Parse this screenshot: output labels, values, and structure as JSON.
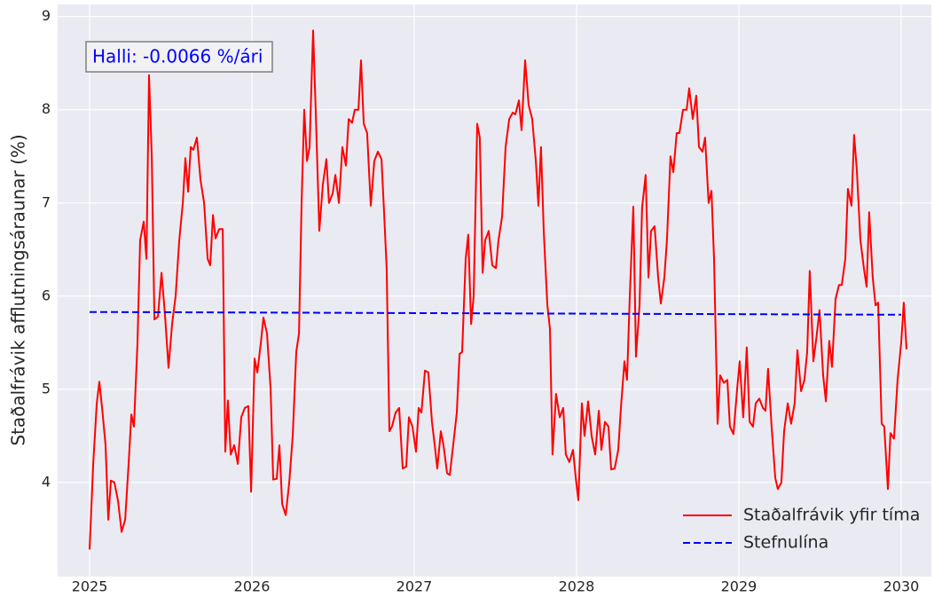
{
  "chart_data": {
    "type": "line",
    "ylabel": "Staðalfrávik afflutningsáraunar (%)",
    "annotation": "Halli: -0.0066 %/ári",
    "xlim": [
      2024.803,
      2030.186
    ],
    "xticks": [
      2025,
      2026,
      2027,
      2028,
      2029,
      2030
    ],
    "ylim": [
      2.99,
      9.13
    ],
    "yticks": [
      4,
      5,
      6,
      7,
      8,
      9
    ],
    "grid": true,
    "legend": "lower right",
    "series": [
      {
        "name": "Staðalfrávik yfir tíma",
        "color": "#ff0000",
        "linestyle": "solid",
        "x": [
          2025,
          2025.022,
          2025.044,
          2025.06,
          2025.077,
          2025.098,
          2025.115,
          2025.131,
          2025.153,
          2025.175,
          2025.197,
          2025.219,
          2025.24,
          2025.257,
          2025.273,
          2025.295,
          2025.311,
          2025.333,
          2025.35,
          2025.366,
          2025.383,
          2025.399,
          2025.421,
          2025.443,
          2025.464,
          2025.486,
          2025.508,
          2025.53,
          2025.552,
          2025.574,
          2025.59,
          2025.607,
          2025.623,
          2025.639,
          2025.661,
          2025.683,
          2025.705,
          2025.727,
          2025.743,
          2025.76,
          2025.776,
          2025.798,
          2025.82,
          2025.836,
          2025.852,
          2025.869,
          2025.891,
          2025.913,
          2025.934,
          2025.956,
          2025.978,
          2025.995,
          2026.016,
          2026.033,
          2026.055,
          2026.071,
          2026.093,
          2026.115,
          2026.131,
          2026.153,
          2026.169,
          2026.186,
          2026.208,
          2026.23,
          2026.251,
          2026.273,
          2026.29,
          2026.306,
          2026.322,
          2026.339,
          2026.355,
          2026.377,
          2026.393,
          2026.415,
          2026.437,
          2026.459,
          2026.475,
          2026.497,
          2026.514,
          2026.536,
          2026.557,
          2026.579,
          2026.596,
          2026.617,
          2026.634,
          2026.656,
          2026.672,
          2026.689,
          2026.71,
          2026.732,
          2026.754,
          2026.776,
          2026.798,
          2026.814,
          2026.83,
          2026.847,
          2026.863,
          2026.885,
          2026.907,
          2026.929,
          2026.951,
          2026.967,
          2026.989,
          2027.011,
          2027.027,
          2027.044,
          2027.066,
          2027.087,
          2027.109,
          2027.126,
          2027.142,
          2027.164,
          2027.18,
          2027.202,
          2027.219,
          2027.24,
          2027.262,
          2027.279,
          2027.295,
          2027.317,
          2027.333,
          2027.35,
          2027.366,
          2027.388,
          2027.404,
          2027.421,
          2027.437,
          2027.459,
          2027.481,
          2027.503,
          2027.519,
          2027.541,
          2027.563,
          2027.585,
          2027.607,
          2027.623,
          2027.645,
          2027.661,
          2027.683,
          2027.705,
          2027.727,
          2027.749,
          2027.765,
          2027.781,
          2027.798,
          2027.82,
          2027.836,
          2027.852,
          2027.874,
          2027.896,
          2027.918,
          2027.934,
          2027.956,
          2027.978,
          2027.995,
          2028.011,
          2028.033,
          2028.049,
          2028.071,
          2028.093,
          2028.115,
          2028.137,
          2028.153,
          2028.175,
          2028.197,
          2028.213,
          2028.235,
          2028.257,
          2028.273,
          2028.295,
          2028.311,
          2028.328,
          2028.35,
          2028.366,
          2028.388,
          2028.404,
          2028.426,
          2028.443,
          2028.459,
          2028.481,
          2028.503,
          2028.519,
          2028.541,
          2028.557,
          2028.579,
          2028.596,
          2028.617,
          2028.634,
          2028.656,
          2028.678,
          2028.694,
          2028.716,
          2028.738,
          2028.754,
          2028.776,
          2028.792,
          2028.814,
          2028.831,
          2028.847,
          2028.869,
          2028.885,
          2028.907,
          2028.929,
          2028.945,
          2028.967,
          2028.989,
          2029.005,
          2029.027,
          2029.049,
          2029.066,
          2029.087,
          2029.104,
          2029.126,
          2029.148,
          2029.164,
          2029.18,
          2029.202,
          2029.224,
          2029.24,
          2029.262,
          2029.279,
          2029.301,
          2029.322,
          2029.344,
          2029.361,
          2029.383,
          2029.404,
          2029.421,
          2029.437,
          2029.459,
          2029.481,
          2029.497,
          2029.519,
          2029.536,
          2029.557,
          2029.574,
          2029.596,
          2029.617,
          2029.634,
          2029.656,
          2029.672,
          2029.694,
          2029.71,
          2029.727,
          2029.749,
          2029.77,
          2029.787,
          2029.803,
          2029.825,
          2029.842,
          2029.858,
          2029.88,
          2029.896,
          2029.918,
          2029.934,
          2029.956,
          2029.978,
          2030,
          2030.016,
          2030.033
        ],
        "values": [
          3.28,
          4.2,
          4.85,
          5.08,
          4.8,
          4.4,
          3.6,
          4.02,
          4.0,
          3.8,
          3.47,
          3.6,
          4.2,
          4.73,
          4.6,
          5.5,
          6.6,
          6.8,
          6.4,
          8.37,
          7.5,
          5.75,
          5.78,
          6.25,
          5.8,
          5.23,
          5.7,
          6.0,
          6.6,
          7.0,
          7.48,
          7.12,
          7.6,
          7.57,
          7.7,
          7.25,
          7.0,
          6.4,
          6.33,
          6.87,
          6.62,
          6.72,
          6.72,
          4.33,
          4.88,
          4.3,
          4.4,
          4.2,
          4.7,
          4.8,
          4.82,
          3.9,
          5.33,
          5.18,
          5.5,
          5.77,
          5.6,
          5.0,
          4.03,
          4.04,
          4.4,
          3.77,
          3.65,
          4.0,
          4.5,
          5.4,
          5.6,
          7.0,
          8.0,
          7.45,
          7.6,
          8.85,
          8.0,
          6.7,
          7.2,
          7.47,
          7.0,
          7.1,
          7.3,
          7.0,
          7.6,
          7.4,
          7.9,
          7.86,
          8.0,
          8.0,
          8.53,
          7.85,
          7.75,
          6.97,
          7.45,
          7.55,
          7.47,
          6.9,
          6.3,
          4.55,
          4.6,
          4.75,
          4.8,
          4.15,
          4.17,
          4.7,
          4.6,
          4.33,
          4.8,
          4.75,
          5.2,
          5.18,
          4.65,
          4.4,
          4.15,
          4.55,
          4.4,
          4.1,
          4.08,
          4.4,
          4.75,
          5.38,
          5.4,
          6.4,
          6.66,
          5.7,
          6.0,
          7.85,
          7.7,
          6.25,
          6.6,
          6.7,
          6.33,
          6.3,
          6.6,
          6.85,
          7.6,
          7.9,
          7.97,
          7.95,
          8.1,
          7.78,
          8.53,
          8.05,
          7.9,
          7.45,
          6.97,
          7.6,
          6.7,
          5.9,
          5.65,
          4.3,
          4.95,
          4.7,
          4.8,
          4.3,
          4.22,
          4.35,
          4.05,
          3.81,
          4.85,
          4.5,
          4.87,
          4.5,
          4.3,
          4.77,
          4.35,
          4.65,
          4.6,
          4.14,
          4.15,
          4.35,
          4.8,
          5.3,
          5.1,
          6.0,
          6.96,
          5.35,
          5.9,
          6.95,
          7.3,
          6.2,
          6.7,
          6.75,
          6.2,
          5.92,
          6.2,
          6.6,
          7.5,
          7.33,
          7.75,
          7.75,
          8.0,
          8.0,
          8.23,
          7.9,
          8.15,
          7.6,
          7.55,
          7.7,
          7.0,
          7.13,
          6.4,
          4.63,
          5.15,
          5.07,
          5.1,
          4.6,
          4.52,
          5.0,
          5.3,
          4.7,
          5.45,
          4.65,
          4.6,
          4.85,
          4.9,
          4.8,
          4.77,
          5.22,
          4.6,
          4.05,
          3.93,
          4.0,
          4.55,
          4.85,
          4.63,
          4.85,
          5.42,
          4.98,
          5.1,
          5.4,
          6.27,
          5.3,
          5.6,
          5.85,
          5.15,
          4.87,
          5.52,
          5.24,
          5.97,
          6.12,
          6.12,
          6.4,
          7.15,
          6.97,
          7.73,
          7.35,
          6.6,
          6.3,
          6.1,
          6.9,
          6.2,
          5.9,
          5.93,
          4.63,
          4.6,
          3.93,
          4.53,
          4.47,
          5.1,
          5.5,
          5.93,
          5.43
        ]
      },
      {
        "name": "Stefnulína",
        "color": "#0000ff",
        "linestyle": "dashed",
        "x": [
          2025,
          2030
        ],
        "values": [
          5.83,
          5.8
        ]
      }
    ]
  }
}
